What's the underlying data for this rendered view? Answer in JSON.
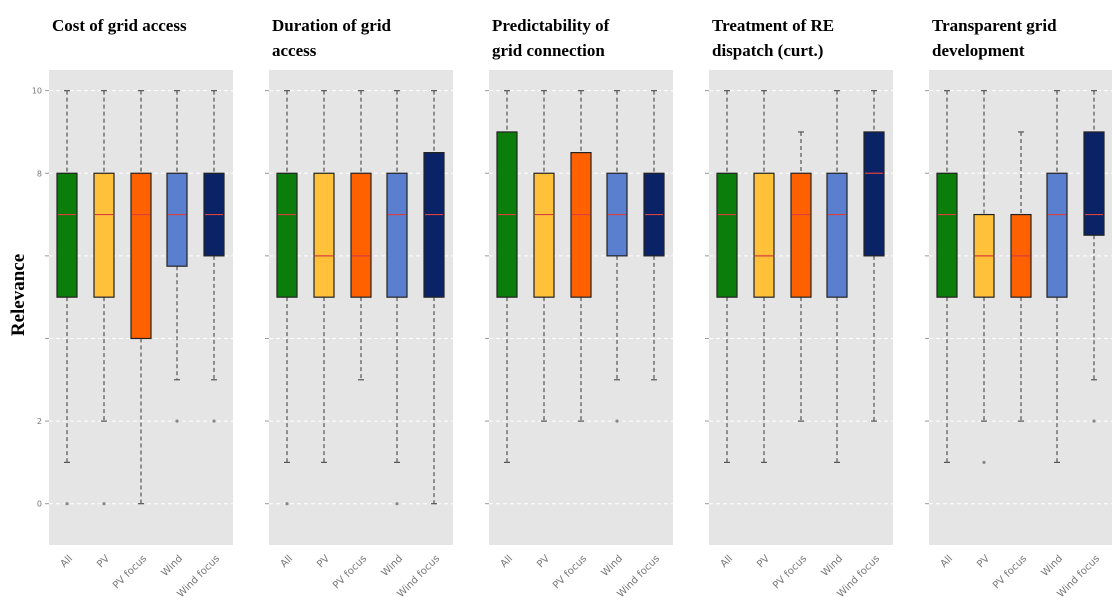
{
  "chart_data": {
    "type": "boxplot",
    "ylabel": "Relevance",
    "ylim": [
      -1,
      10.5
    ],
    "yticks": [
      0,
      2,
      4,
      6,
      8,
      10
    ],
    "ytick_labels": [
      "0",
      "2",
      "",
      "",
      "8",
      "10"
    ],
    "categories": [
      "All",
      "PV",
      "PV focus",
      "Wind",
      "Wind focus"
    ],
    "colors": [
      "#0a7d0a",
      "#ffc03a",
      "#ff6000",
      "#5b7fcf",
      "#0a2266"
    ],
    "median_color": "#d94040",
    "panels": [
      {
        "title_lines": [
          "Cost of grid access"
        ],
        "boxes": [
          {
            "low": 1,
            "q1": 5,
            "median": 7,
            "q3": 8,
            "high": 10,
            "outliers": [
              0
            ]
          },
          {
            "low": 2,
            "q1": 5,
            "median": 7,
            "q3": 8,
            "high": 10,
            "outliers": [
              0
            ]
          },
          {
            "low": 0,
            "q1": 4,
            "median": 7,
            "q3": 8,
            "high": 10,
            "outliers": []
          },
          {
            "low": 3,
            "q1": 5.75,
            "median": 7,
            "q3": 8,
            "high": 10,
            "outliers": [
              2
            ]
          },
          {
            "low": 3,
            "q1": 6,
            "median": 7,
            "q3": 8,
            "high": 10,
            "outliers": [
              2
            ]
          }
        ]
      },
      {
        "title_lines": [
          "Duration of grid",
          "access"
        ],
        "boxes": [
          {
            "low": 1,
            "q1": 5,
            "median": 7,
            "q3": 8,
            "high": 10,
            "outliers": [
              0
            ]
          },
          {
            "low": 1,
            "q1": 5,
            "median": 6,
            "q3": 8,
            "high": 10,
            "outliers": []
          },
          {
            "low": 3,
            "q1": 5,
            "median": 6,
            "q3": 8,
            "high": 10,
            "outliers": []
          },
          {
            "low": 1,
            "q1": 5,
            "median": 7,
            "q3": 8,
            "high": 10,
            "outliers": [
              0
            ]
          },
          {
            "low": 0,
            "q1": 5,
            "median": 7,
            "q3": 8.5,
            "high": 10,
            "outliers": []
          }
        ]
      },
      {
        "title_lines": [
          "Predictability of",
          "grid connection"
        ],
        "boxes": [
          {
            "low": 1,
            "q1": 5,
            "median": 7,
            "q3": 9,
            "high": 10,
            "outliers": []
          },
          {
            "low": 2,
            "q1": 5,
            "median": 7,
            "q3": 8,
            "high": 10,
            "outliers": []
          },
          {
            "low": 2,
            "q1": 5,
            "median": 7,
            "q3": 8.5,
            "high": 10,
            "outliers": []
          },
          {
            "low": 3,
            "q1": 6,
            "median": 7,
            "q3": 8,
            "high": 10,
            "outliers": [
              2
            ]
          },
          {
            "low": 3,
            "q1": 6,
            "median": 7,
            "q3": 8,
            "high": 10,
            "outliers": []
          }
        ]
      },
      {
        "title_lines": [
          "Treatment of RE",
          "dispatch (curt.)"
        ],
        "boxes": [
          {
            "low": 1,
            "q1": 5,
            "median": 7,
            "q3": 8,
            "high": 10,
            "outliers": []
          },
          {
            "low": 1,
            "q1": 5,
            "median": 6,
            "q3": 8,
            "high": 10,
            "outliers": []
          },
          {
            "low": 2,
            "q1": 5,
            "median": 7,
            "q3": 8,
            "high": 9,
            "outliers": []
          },
          {
            "low": 1,
            "q1": 5,
            "median": 7,
            "q3": 8,
            "high": 10,
            "outliers": []
          },
          {
            "low": 2,
            "q1": 6,
            "median": 8,
            "q3": 9,
            "high": 10,
            "outliers": []
          }
        ]
      },
      {
        "title_lines": [
          "Transparent grid",
          "development"
        ],
        "boxes": [
          {
            "low": 1,
            "q1": 5,
            "median": 7,
            "q3": 8,
            "high": 10,
            "outliers": []
          },
          {
            "low": 2,
            "q1": 5,
            "median": 6,
            "q3": 7,
            "high": 10,
            "outliers": [
              1
            ]
          },
          {
            "low": 2,
            "q1": 5,
            "median": 6,
            "q3": 7,
            "high": 9,
            "outliers": []
          },
          {
            "low": 1,
            "q1": 5,
            "median": 7,
            "q3": 8,
            "high": 10,
            "outliers": []
          },
          {
            "low": 3,
            "q1": 6.5,
            "median": 7,
            "q3": 9,
            "high": 10,
            "outliers": [
              2
            ]
          }
        ]
      }
    ]
  }
}
